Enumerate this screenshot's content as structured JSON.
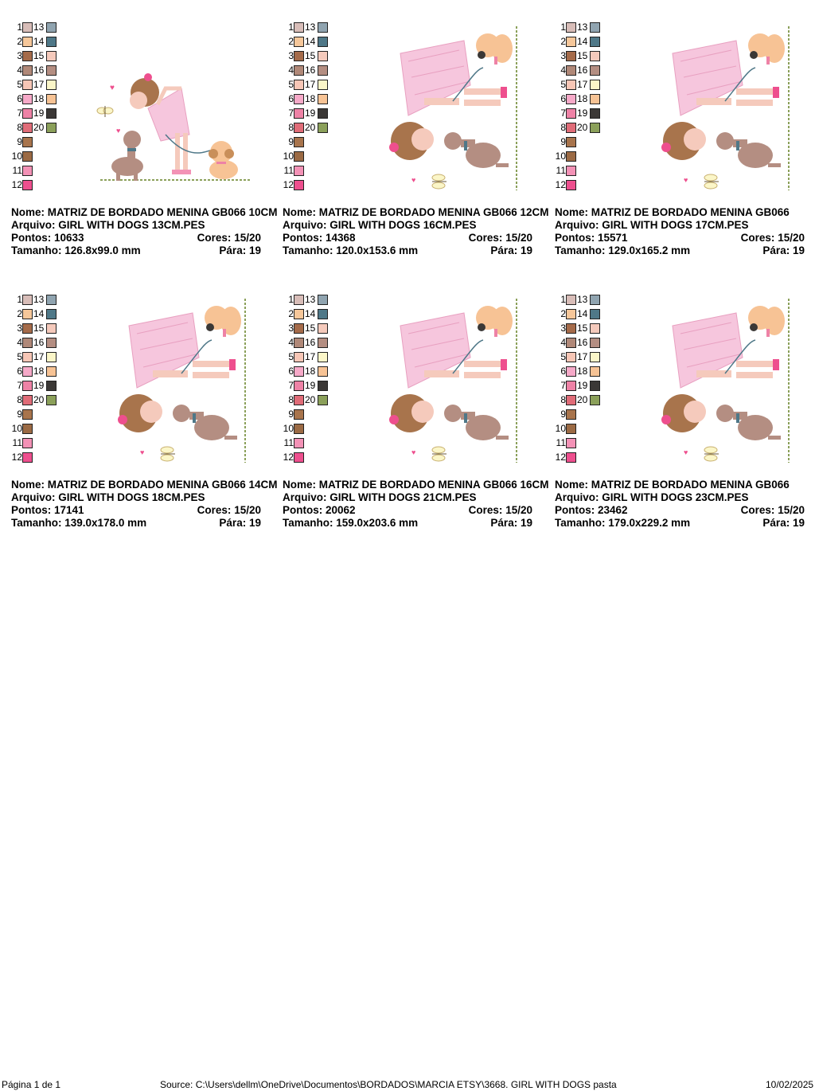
{
  "colors": {
    "c1": "#d8bdb8",
    "c2": "#f6c79a",
    "c3": "#a56b4a",
    "c4": "#b08878",
    "c5": "#f7c6b6",
    "c6": "#f6a9c8",
    "c7": "#ee82a6",
    "c8": "#e06c78",
    "c9": "#a8744c",
    "c10": "#9b6a44",
    "c11": "#f392b6",
    "c12": "#ee4f8e",
    "c13": "#90a4b0",
    "c14": "#4f7888",
    "c15": "#f5cabc",
    "c16": "#b48e82",
    "c17": "#fbf6c8",
    "c18": "#f7c395",
    "c19": "#3b3836",
    "c20": "#8ba05a"
  },
  "cards": [
    {
      "nome_label": "Nome:",
      "nome": "MATRIZ DE BORDADO MENINA GB066 10CM",
      "arquivo_label": "Arquivo:",
      "arquivo": "GIRL WITH DOGS 13CM.PES",
      "pontos_label": "Pontos:",
      "pontos": "10633",
      "cores_label": "Cores:",
      "cores": "15/20",
      "tamanho_label": "Tamanho:",
      "tamanho": "126.8x99.0 mm",
      "para_label": "Pára:",
      "para": "19",
      "orientation": "upright"
    },
    {
      "nome_label": "Nome:",
      "nome": "MATRIZ DE BORDADO MENINA GB066 12CM",
      "arquivo_label": "Arquivo:",
      "arquivo": "GIRL WITH DOGS 16CM.PES",
      "pontos_label": "Pontos:",
      "pontos": "14368",
      "cores_label": "Cores:",
      "cores": "15/20",
      "tamanho_label": "Tamanho:",
      "tamanho": "120.0x153.6 mm",
      "para_label": "Pára:",
      "para": "19",
      "orientation": "rotated"
    },
    {
      "nome_label": "Nome:",
      "nome": "MATRIZ DE BORDADO MENINA GB066",
      "arquivo_label": "Arquivo:",
      "arquivo": "GIRL WITH DOGS 17CM.PES",
      "pontos_label": "Pontos:",
      "pontos": "15571",
      "cores_label": "Cores:",
      "cores": "15/20",
      "tamanho_label": "Tamanho:",
      "tamanho": "129.0x165.2 mm",
      "para_label": "Pára:",
      "para": "19",
      "orientation": "rotated"
    },
    {
      "nome_label": "Nome:",
      "nome": "MATRIZ DE BORDADO MENINA GB066 14CM",
      "arquivo_label": "Arquivo:",
      "arquivo": "GIRL WITH DOGS 18CM.PES",
      "pontos_label": "Pontos:",
      "pontos": "17141",
      "cores_label": "Cores:",
      "cores": "15/20",
      "tamanho_label": "Tamanho:",
      "tamanho": "139.0x178.0 mm",
      "para_label": "Pára:",
      "para": "19",
      "orientation": "rotated"
    },
    {
      "nome_label": "Nome:",
      "nome": "MATRIZ DE BORDADO MENINA GB066 16CM",
      "arquivo_label": "Arquivo:",
      "arquivo": "GIRL WITH DOGS 21CM.PES",
      "pontos_label": "Pontos:",
      "pontos": "20062",
      "cores_label": "Cores:",
      "cores": "15/20",
      "tamanho_label": "Tamanho:",
      "tamanho": "159.0x203.6 mm",
      "para_label": "Pára:",
      "para": "19",
      "orientation": "rotated"
    },
    {
      "nome_label": "Nome:",
      "nome": "MATRIZ DE BORDADO MENINA GB066",
      "arquivo_label": "Arquivo:",
      "arquivo": "GIRL WITH DOGS 23CM.PES",
      "pontos_label": "Pontos:",
      "pontos": "23462",
      "cores_label": "Cores:",
      "cores": "15/20",
      "tamanho_label": "Tamanho:",
      "tamanho": "179.0x229.2 mm",
      "para_label": "Pára:",
      "para": "19",
      "orientation": "rotated"
    }
  ],
  "footer": {
    "page": "Página 1 de 1",
    "source": "Source: C:\\Users\\dellm\\OneDrive\\Documentos\\BORDADOS\\MARCIA ETSY\\3668. GIRL WITH DOGS pasta",
    "date": "10/02/2025"
  }
}
